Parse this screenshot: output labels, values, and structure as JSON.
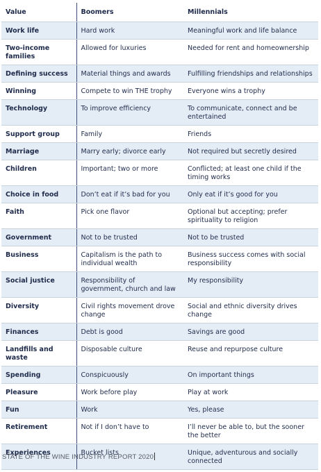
{
  "table": {
    "headers": [
      "Value",
      "Boomers",
      "Millennials"
    ],
    "rows": [
      [
        "Work life",
        "Hard work",
        "Meaningful work and life balance"
      ],
      [
        "Two-income families",
        "Allowed for luxuries",
        "Needed for rent and homeownership"
      ],
      [
        "Defining success",
        "Material things and awards",
        "Fulfilling friendships and relationships"
      ],
      [
        "Winning",
        "Compete to win THE trophy",
        "Everyone wins a trophy"
      ],
      [
        "Technology",
        "To improve efficiency",
        "To communicate, connect and be entertained"
      ],
      [
        "Support group",
        "Family",
        "Friends"
      ],
      [
        "Marriage",
        "Marry early; divorce early",
        "Not required but secretly desired"
      ],
      [
        "Children",
        "Important; two or more",
        "Conflicted; at least one child if the timing works"
      ],
      [
        "Choice in food",
        "Don’t eat if it’s bad for you",
        "Only eat if it’s good for you"
      ],
      [
        "Faith",
        "Pick one flavor",
        "Optional but accepting; prefer spirituality to religion"
      ],
      [
        "Government",
        "Not to be trusted",
        "Not to be trusted"
      ],
      [
        "Business",
        "Capitalism is the path to individual wealth",
        "Business success comes with social responsibility"
      ],
      [
        "Social justice",
        "Responsibility of government, church and law",
        "My responsibility"
      ],
      [
        "Diversity",
        "Civil rights movement drove change",
        "Social and ethnic diversity drives change"
      ],
      [
        "Finances",
        "Debt is good",
        "Savings are good"
      ],
      [
        "Landfills and waste",
        "Disposable culture",
        "Reuse and repurpose culture"
      ],
      [
        "Spending",
        "Conspicuously",
        "On important things"
      ],
      [
        "Pleasure",
        "Work before play",
        "Play at work"
      ],
      [
        "Fun",
        "Work",
        "Yes, please"
      ],
      [
        "Retirement",
        "Not if I don’t have to",
        "I’ll never be able to, but the sooner the better"
      ],
      [
        "Experiences",
        "Bucket lists",
        "Unique, adventurous and socially connected"
      ]
    ]
  },
  "footer": "STATE OF THE WINE INDUSTRY REPORT 2020",
  "colors": {
    "text": "#1e2a4a",
    "row_shade": "#e4edf6",
    "divider": "#3d4f7a",
    "row_rule": "#c9d3df",
    "footer_text": "#555a66"
  }
}
